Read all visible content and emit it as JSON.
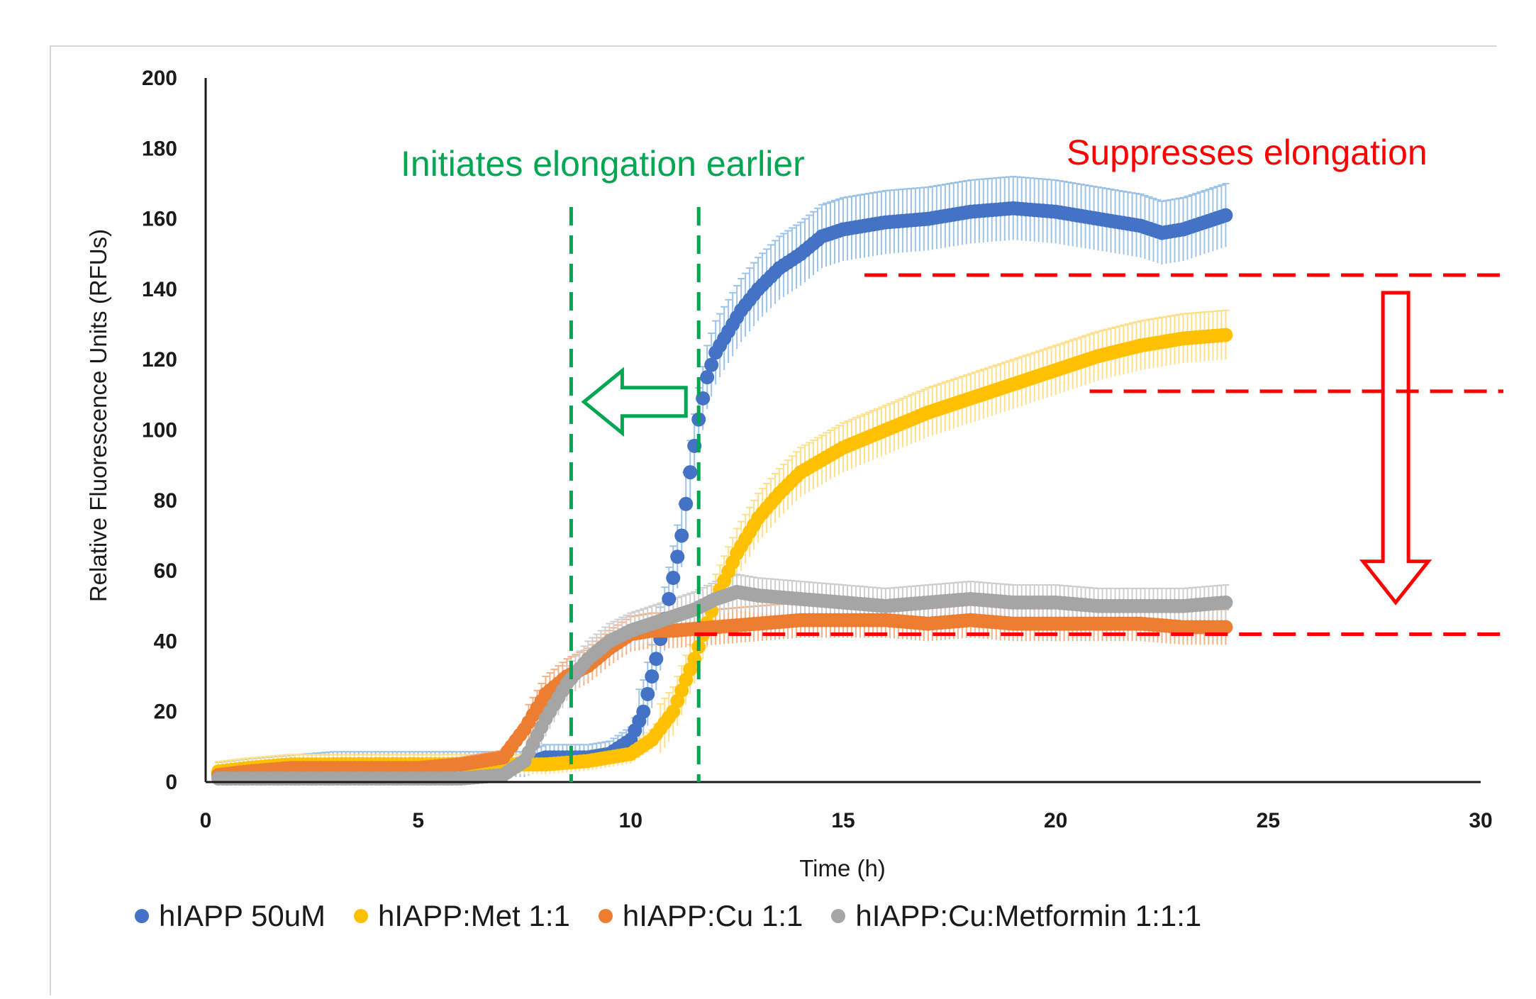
{
  "chart_data": {
    "type": "scatter",
    "xlabel": "Time (h)",
    "ylabel": "Relative Fluorescence Units (RFUs)",
    "xlim": [
      0,
      30
    ],
    "ylim": [
      0,
      200
    ],
    "x_ticks": [
      0,
      5,
      10,
      15,
      20,
      25,
      30
    ],
    "y_ticks": [
      0,
      20,
      40,
      60,
      80,
      100,
      120,
      140,
      160,
      180,
      200
    ],
    "x_tick_labels": [
      "0",
      "5",
      "10",
      "15",
      "20",
      "25",
      "30"
    ],
    "y_tick_labels": [
      "0",
      "20",
      "40",
      "60",
      "80",
      "100",
      "120",
      "140",
      "160",
      "180",
      "200"
    ],
    "legend_position": "bottom",
    "series": [
      {
        "name": "hIAPP 50uM",
        "color": "#4472c4",
        "error_color": "#9dc3e6",
        "points": [
          [
            0.3,
            2
          ],
          [
            1,
            3
          ],
          [
            2,
            4
          ],
          [
            3,
            5
          ],
          [
            4,
            5
          ],
          [
            5,
            5
          ],
          [
            6,
            5
          ],
          [
            7,
            5
          ],
          [
            7.5,
            5
          ],
          [
            8,
            7
          ],
          [
            8.5,
            7
          ],
          [
            9,
            7
          ],
          [
            9.5,
            8
          ],
          [
            10,
            12
          ],
          [
            10.3,
            20
          ],
          [
            10.6,
            35
          ],
          [
            10.9,
            52
          ],
          [
            11.2,
            70
          ],
          [
            11.4,
            88
          ],
          [
            11.6,
            103
          ],
          [
            11.8,
            115
          ],
          [
            12,
            122
          ],
          [
            12.3,
            128
          ],
          [
            12.6,
            134
          ],
          [
            13,
            140
          ],
          [
            13.5,
            146
          ],
          [
            14,
            150
          ],
          [
            14.5,
            155
          ],
          [
            15,
            157
          ],
          [
            16,
            159
          ],
          [
            17,
            160
          ],
          [
            18,
            162
          ],
          [
            19,
            163
          ],
          [
            20,
            162
          ],
          [
            21,
            160
          ],
          [
            22,
            158
          ],
          [
            22.5,
            156
          ],
          [
            23,
            157
          ],
          [
            24,
            161
          ]
        ],
        "error": 9
      },
      {
        "name": "hIAPP:Met 1:1",
        "color": "#ffc000",
        "error_color": "#ffe08a",
        "points": [
          [
            0.3,
            3
          ],
          [
            1,
            4
          ],
          [
            2,
            5
          ],
          [
            3,
            5
          ],
          [
            4,
            5
          ],
          [
            5,
            5
          ],
          [
            6,
            5
          ],
          [
            7,
            5
          ],
          [
            7.5,
            5
          ],
          [
            8,
            5
          ],
          [
            9,
            6
          ],
          [
            10,
            8
          ],
          [
            10.5,
            12
          ],
          [
            11,
            20
          ],
          [
            11.5,
            35
          ],
          [
            12,
            52
          ],
          [
            12.5,
            65
          ],
          [
            13,
            75
          ],
          [
            13.5,
            82
          ],
          [
            14,
            88
          ],
          [
            15,
            95
          ],
          [
            16,
            100
          ],
          [
            17,
            105
          ],
          [
            18,
            109
          ],
          [
            19,
            113
          ],
          [
            20,
            117
          ],
          [
            21,
            121
          ],
          [
            22,
            124
          ],
          [
            23,
            126
          ],
          [
            24,
            127
          ]
        ],
        "error": 7
      },
      {
        "name": "hIAPP:Cu 1:1",
        "color": "#ed7d31",
        "error_color": "#f4b183",
        "points": [
          [
            0.3,
            2
          ],
          [
            1,
            3
          ],
          [
            2,
            4
          ],
          [
            3,
            4
          ],
          [
            4,
            4
          ],
          [
            5,
            4
          ],
          [
            6,
            5
          ],
          [
            7,
            7
          ],
          [
            7.5,
            15
          ],
          [
            8,
            25
          ],
          [
            8.5,
            30
          ],
          [
            9,
            33
          ],
          [
            9.5,
            38
          ],
          [
            10,
            42
          ],
          [
            10.5,
            43
          ],
          [
            11,
            43
          ],
          [
            12,
            44
          ],
          [
            13,
            45
          ],
          [
            14,
            46
          ],
          [
            15,
            46
          ],
          [
            16,
            46
          ],
          [
            17,
            45
          ],
          [
            18,
            46
          ],
          [
            19,
            45
          ],
          [
            20,
            45
          ],
          [
            21,
            45
          ],
          [
            22,
            45
          ],
          [
            23,
            44
          ],
          [
            24,
            44
          ]
        ],
        "error": 5
      },
      {
        "name": "hIAPP:Cu:Metformin 1:1:1",
        "color": "#a5a5a5",
        "error_color": "#cfcfcf",
        "points": [
          [
            0.3,
            1
          ],
          [
            1,
            1
          ],
          [
            2,
            1
          ],
          [
            3,
            1
          ],
          [
            4,
            1
          ],
          [
            5,
            1
          ],
          [
            6,
            1
          ],
          [
            7,
            2
          ],
          [
            7.5,
            6
          ],
          [
            8,
            18
          ],
          [
            8.5,
            28
          ],
          [
            9,
            35
          ],
          [
            9.5,
            40
          ],
          [
            10,
            43
          ],
          [
            10.5,
            45
          ],
          [
            11,
            47
          ],
          [
            11.5,
            49
          ],
          [
            12,
            52
          ],
          [
            12.5,
            54
          ],
          [
            13,
            53
          ],
          [
            14,
            52
          ],
          [
            15,
            51
          ],
          [
            16,
            50
          ],
          [
            17,
            51
          ],
          [
            18,
            52
          ],
          [
            19,
            51
          ],
          [
            20,
            51
          ],
          [
            21,
            50
          ],
          [
            22,
            50
          ],
          [
            23,
            50
          ],
          [
            24,
            51
          ]
        ],
        "error": 5
      }
    ],
    "annotations": {
      "left_text": "Initiates elongation earlier",
      "left_color": "#00a651",
      "right_text": "Suppresses elongation",
      "right_color": "#ff0000",
      "vlines_x": [
        8.6,
        11.6
      ],
      "hlines": [
        {
          "y": 144,
          "x_from": 15.5
        },
        {
          "y": 111,
          "x_from": 20.8
        },
        {
          "y": 42,
          "x_from": 11.5
        }
      ],
      "left_arrow_from_x": 11.3,
      "left_arrow_to_x": 8.9,
      "left_arrow_y": 108,
      "down_arrow_x": 28,
      "down_arrow_from_y": 139,
      "down_arrow_to_y": 51
    }
  }
}
